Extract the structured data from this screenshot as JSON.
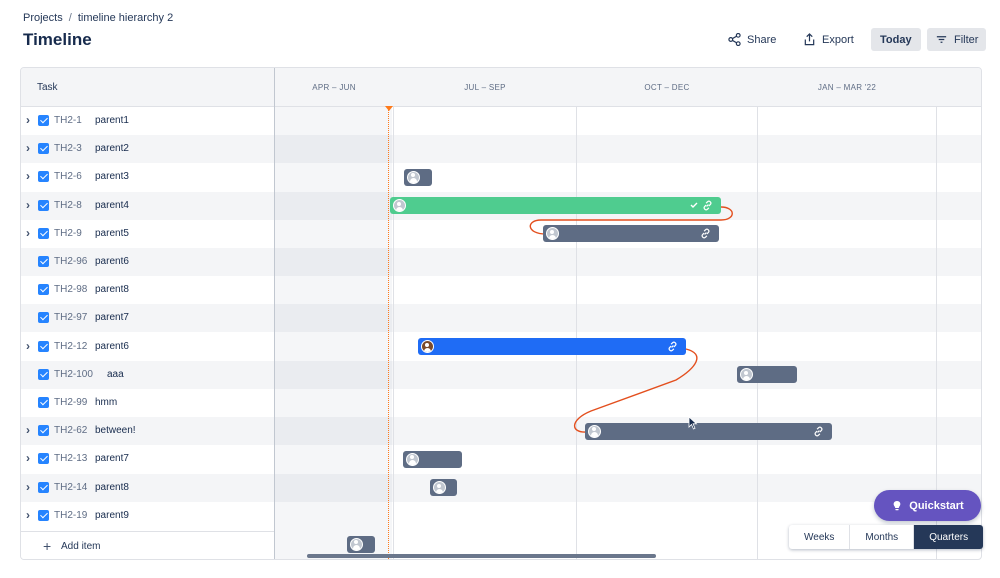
{
  "breadcrumb": {
    "root": "Projects",
    "separator": "/",
    "current": "timeline hierarchy 2"
  },
  "title": "Timeline",
  "toolbar": {
    "share": "Share",
    "export": "Export",
    "today": "Today",
    "filter": "Filter"
  },
  "table": {
    "task_header": "Task"
  },
  "quarters": [
    "APR – JUN",
    "JUL – SEP",
    "OCT – DEC",
    "JAN – MAR '22"
  ],
  "tasks": [
    {
      "key": "TH2-1",
      "name": "parent1",
      "expandable": true
    },
    {
      "key": "TH2-3",
      "name": "parent2",
      "expandable": true
    },
    {
      "key": "TH2-6",
      "name": "parent3",
      "expandable": true
    },
    {
      "key": "TH2-8",
      "name": "parent4",
      "expandable": true
    },
    {
      "key": "TH2-9",
      "name": "parent5",
      "expandable": true
    },
    {
      "key": "TH2-96",
      "name": "parent6",
      "expandable": false
    },
    {
      "key": "TH2-98",
      "name": "parent8",
      "expandable": false
    },
    {
      "key": "TH2-97",
      "name": "parent7",
      "expandable": false
    },
    {
      "key": "TH2-12",
      "name": "parent6",
      "expandable": true
    },
    {
      "key": "TH2-100",
      "name": "aaa",
      "expandable": false
    },
    {
      "key": "TH2-99",
      "name": "hmm",
      "expandable": false
    },
    {
      "key": "TH2-62",
      "name": "between!",
      "expandable": true
    },
    {
      "key": "TH2-13",
      "name": "parent7",
      "expandable": true
    },
    {
      "key": "TH2-14",
      "name": "parent8",
      "expandable": true
    },
    {
      "key": "TH2-19",
      "name": "parent9",
      "expandable": true
    }
  ],
  "add_item": "Add item",
  "quickstart": "Quickstart",
  "zoom": {
    "options": [
      "Weeks",
      "Months",
      "Quarters"
    ],
    "selected": "Quarters"
  },
  "colors": {
    "accent": "#6554c0",
    "today_marker": "#ff7a1a",
    "bar_grey": "#5e6c84",
    "bar_green": "#4fcc8f",
    "bar_blue": "#1f6cf5",
    "dependency": "#e34f1e"
  },
  "icons": {
    "share": "share-icon",
    "export": "export-icon",
    "filter": "filter-icon",
    "quickstart": "lightbulb-icon",
    "link": "link-icon"
  }
}
